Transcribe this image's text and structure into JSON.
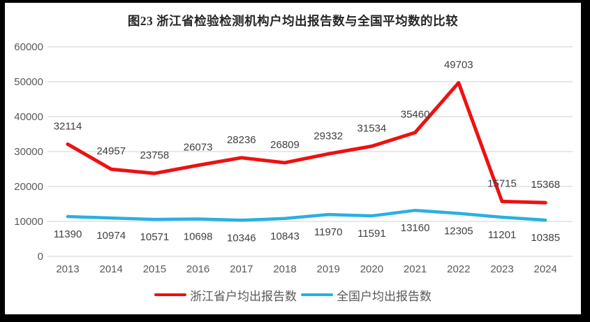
{
  "title": "图23  浙江省检验检测机构户均出报告数与全国平均数的比较",
  "colors": {
    "zhejiang_line": "#ee1111",
    "national_line": "#29b0e2",
    "gridline": "#d9d9d9",
    "axis_text": "#595959",
    "data_label_text": "#404040",
    "title_text": "#262626",
    "frame": "#000000",
    "background": "#ffffff"
  },
  "chart_data": {
    "type": "line",
    "title": "图23  浙江省检验检测机构户均出报告数与全国平均数的比较",
    "categories": [
      "2013",
      "2014",
      "2015",
      "2016",
      "2017",
      "2018",
      "2019",
      "2020",
      "2021",
      "2022",
      "2023",
      "2024"
    ],
    "series": [
      {
        "name": "浙江省户均出报告数",
        "color": "#ee1111",
        "label_position": "above",
        "values": [
          32114,
          24957,
          23758,
          26073,
          28236,
          26809,
          29332,
          31534,
          35460,
          49703,
          15715,
          15368
        ]
      },
      {
        "name": "全国户均出报告数",
        "color": "#29b0e2",
        "label_position": "below",
        "values": [
          11390,
          10974,
          10571,
          10698,
          10346,
          10843,
          11970,
          11591,
          13160,
          12305,
          11201,
          10385
        ]
      }
    ],
    "xlabel": "",
    "ylabel": "",
    "ylim": [
      0,
      60000
    ],
    "ytick_step": 10000,
    "yticks": [
      0,
      10000,
      20000,
      30000,
      40000,
      50000,
      60000
    ],
    "grid": true,
    "data_labels": true,
    "legend_position": "bottom"
  }
}
